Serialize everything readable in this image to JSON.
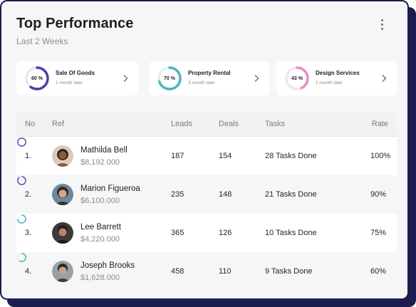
{
  "header": {
    "title": "Top Performance",
    "subtitle": "Last 2 Weeks"
  },
  "stats": [
    {
      "percent_label": "60 %",
      "percent": 60,
      "name": "Sale Of Goods",
      "sub": "1 month later",
      "color": "#4b3fb0"
    },
    {
      "percent_label": "70 %",
      "percent": 70,
      "name": "Property Rental",
      "sub": "3 month later",
      "color": "#4fb3bf"
    },
    {
      "percent_label": "43 %",
      "percent": 43,
      "name": "Design Services",
      "sub": "1 month later",
      "color": "#e98ac9"
    }
  ],
  "table": {
    "columns": [
      "No",
      "Ref",
      "Leads",
      "Deals",
      "Tasks",
      "Rate"
    ],
    "rows": [
      {
        "no": "1.",
        "name": "Mathilda Bell",
        "amount": "$8,192.000",
        "leads": "187",
        "deals": "154",
        "tasks": "28 Tasks Done",
        "rate": "100%",
        "rate_value": 100,
        "rate_color": "#5a4fb8"
      },
      {
        "no": "2.",
        "name": "Marion Figueroa",
        "amount": "$6,100.000",
        "leads": "235",
        "deals": "148",
        "tasks": "21 Tasks Done",
        "rate": "90%",
        "rate_value": 90,
        "rate_color": "#5a4fb8"
      },
      {
        "no": "3.",
        "name": "Lee Barrett",
        "amount": "$4,220.000",
        "leads": "365",
        "deals": "126",
        "tasks": "10 Tasks Done",
        "rate": "75%",
        "rate_value": 75,
        "rate_color": "#4fb3bf"
      },
      {
        "no": "4.",
        "name": "Joseph Brooks",
        "amount": "$1,628.000",
        "leads": "458",
        "deals": "110",
        "tasks": "9 Tasks Done",
        "rate": "60%",
        "rate_value": 60,
        "rate_color": "#4fb3bf"
      }
    ]
  },
  "icons": {
    "menu": "more-vertical-icon",
    "stat_arrow": "chevron-right-icon"
  }
}
